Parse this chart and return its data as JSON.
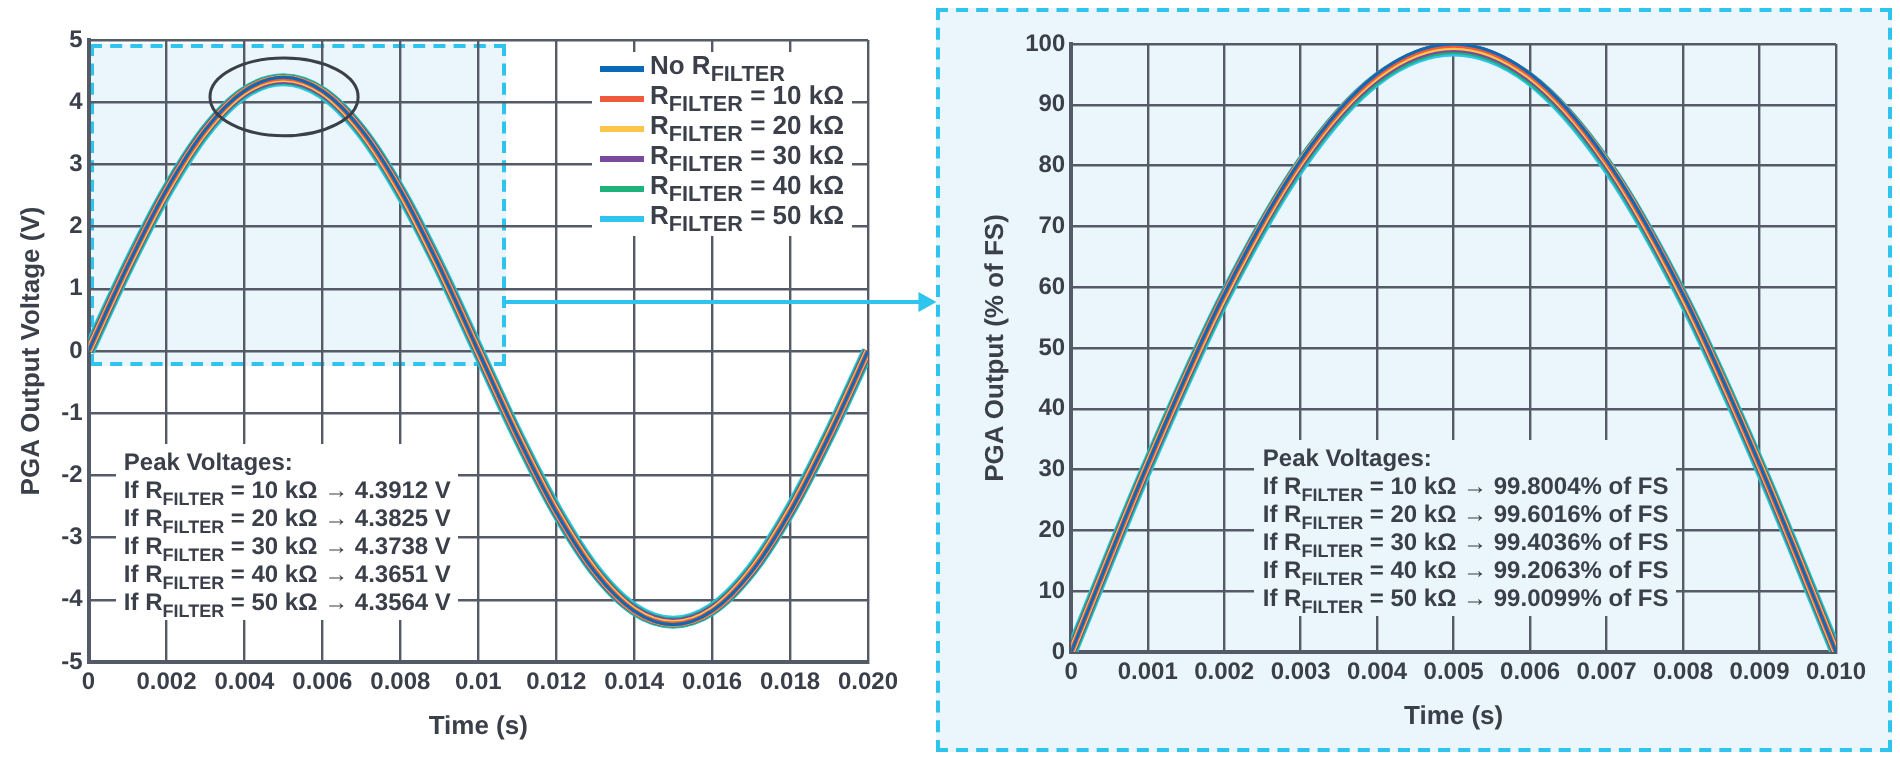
{
  "chart_data": [
    {
      "type": "line",
      "xlabel": "Time (s)",
      "ylabel": "PGA Output Voltage (V)",
      "x": [
        0,
        0.001,
        0.002,
        0.003,
        0.004,
        0.005,
        0.006,
        0.007,
        0.008,
        0.009,
        0.01,
        0.011,
        0.012,
        0.013,
        0.014,
        0.015,
        0.016,
        0.017,
        0.018,
        0.019,
        0.02
      ],
      "xlim": [
        0,
        0.02
      ],
      "xticks": [
        0,
        0.002,
        0.004,
        0.006,
        0.008,
        0.01,
        0.012,
        0.014,
        0.016,
        0.018,
        {
          "value": 0.02,
          "label": "0.020"
        }
      ],
      "ylim": [
        -5,
        5
      ],
      "yticks": [
        -5,
        -4,
        -3,
        -2,
        -1,
        0,
        1,
        2,
        3,
        4,
        5
      ],
      "grid": true,
      "legend": "top right",
      "series": [
        {
          "name": "No R$_{FILTER}$",
          "color": "#0a6ab8",
          "values": [
            0,
            1.36,
            2.59,
            3.56,
            4.18,
            4.4,
            4.18,
            3.56,
            2.59,
            1.36,
            0,
            -1.36,
            -2.59,
            -3.56,
            -4.18,
            -4.4,
            -4.18,
            -3.56,
            -2.59,
            -1.36,
            0
          ]
        },
        {
          "name": "R$_{FILTER}$ = 10 kΩ",
          "color": "#f05a3c",
          "values": [
            0,
            1.36,
            2.58,
            3.55,
            4.18,
            4.39,
            4.18,
            3.55,
            2.58,
            1.36,
            0,
            -1.36,
            -2.58,
            -3.55,
            -4.18,
            -4.39,
            -4.18,
            -3.55,
            -2.58,
            -1.36,
            0
          ]
        },
        {
          "name": "R$_{FILTER}$ = 20 kΩ",
          "color": "#fcc64a",
          "values": [
            0,
            1.35,
            2.57,
            3.54,
            4.17,
            4.38,
            4.17,
            3.54,
            2.57,
            1.35,
            0,
            -1.35,
            -2.57,
            -3.54,
            -4.17,
            -4.38,
            -4.17,
            -3.54,
            -2.57,
            -1.35,
            0
          ]
        },
        {
          "name": "R$_{FILTER}$ = 30 kΩ",
          "color": "#7b4a9e",
          "values": [
            0,
            1.35,
            2.57,
            3.54,
            4.16,
            4.37,
            4.16,
            3.54,
            2.57,
            1.35,
            0,
            -1.35,
            -2.57,
            -3.54,
            -4.16,
            -4.37,
            -4.16,
            -3.54,
            -2.57,
            -1.35,
            0
          ]
        },
        {
          "name": "R$_{FILTER}$ = 40 kΩ",
          "color": "#1db37a",
          "values": [
            0,
            1.35,
            2.57,
            3.54,
            4.16,
            4.37,
            4.16,
            3.54,
            2.57,
            1.35,
            0,
            -1.35,
            -2.57,
            -3.54,
            -4.16,
            -4.37,
            -4.16,
            -3.54,
            -2.57,
            -1.35,
            0
          ]
        },
        {
          "name": "R$_{FILTER}$ = 50 kΩ",
          "color": "#2ec4ee",
          "values": [
            0,
            1.35,
            2.56,
            3.53,
            4.15,
            4.36,
            4.15,
            3.53,
            2.56,
            1.35,
            0,
            -1.35,
            -2.56,
            -3.53,
            -4.15,
            -4.36,
            -4.15,
            -3.53,
            -2.56,
            -1.35,
            0
          ]
        }
      ],
      "annotations": [
        "Peak Voltages:",
        "If R$_{FILTER}$ = 10 kΩ → 4.3912 V",
        "If R$_{FILTER}$ = 20 kΩ → 4.3825 V",
        "If R$_{FILTER}$ = 30 kΩ → 4.3738 V",
        "If R$_{FILTER}$ = 40 kΩ → 4.3651 V",
        "If R$_{FILTER}$ = 50 kΩ → 4.3564 V"
      ]
    },
    {
      "type": "line",
      "xlabel": "Time (s)",
      "ylabel": "PGA Output (% of FS)",
      "x": [
        0,
        0.001,
        0.002,
        0.003,
        0.004,
        0.005,
        0.006,
        0.007,
        0.008,
        0.009,
        0.01
      ],
      "xlim": [
        0,
        0.01
      ],
      "xticks": [
        0,
        0.001,
        0.002,
        0.003,
        0.004,
        0.005,
        0.006,
        0.007,
        0.008,
        0.009,
        {
          "value": 0.01,
          "label": "0.010"
        }
      ],
      "ylim": [
        0,
        100
      ],
      "yticks": [
        0,
        10,
        20,
        30,
        40,
        50,
        60,
        70,
        80,
        90,
        100
      ],
      "grid": true,
      "series": [
        {
          "color": "#0a6ab8",
          "values": [
            0,
            30.9,
            58.8,
            80.9,
            95.1,
            100,
            95.1,
            80.9,
            58.8,
            30.9,
            0
          ]
        },
        {
          "color": "#f05a3c",
          "values": [
            0,
            30.8,
            58.7,
            80.7,
            94.9,
            99.8,
            94.9,
            80.7,
            58.7,
            30.8,
            0
          ]
        },
        {
          "color": "#fcc64a",
          "values": [
            0,
            30.8,
            58.5,
            80.6,
            94.7,
            99.6,
            94.7,
            80.6,
            58.5,
            30.8,
            0
          ]
        },
        {
          "color": "#7b4a9e",
          "values": [
            0,
            30.7,
            58.4,
            80.4,
            94.5,
            99.4,
            94.5,
            80.4,
            58.4,
            30.7,
            0
          ]
        },
        {
          "color": "#1db37a",
          "values": [
            0,
            30.7,
            58.3,
            80.3,
            94.3,
            99.2,
            94.3,
            80.3,
            58.3,
            30.7,
            0
          ]
        },
        {
          "color": "#2ec4ee",
          "values": [
            0,
            30.6,
            58.2,
            80.1,
            94.2,
            99.0,
            94.2,
            80.1,
            58.2,
            30.6,
            0
          ]
        }
      ],
      "annotations": [
        "Peak Voltages:",
        "If R$_{FILTER}$ = 10 kΩ → 99.8004% of FS",
        "If R$_{FILTER}$ = 20 kΩ → 99.6016% of FS",
        "If R$_{FILTER}$ = 30 kΩ → 99.4036% of FS",
        "If R$_{FILTER}$ = 40 kΩ → 99.2063% of FS",
        "If R$_{FILTER}$ = 50 kΩ → 99.0099% of FS"
      ]
    }
  ]
}
